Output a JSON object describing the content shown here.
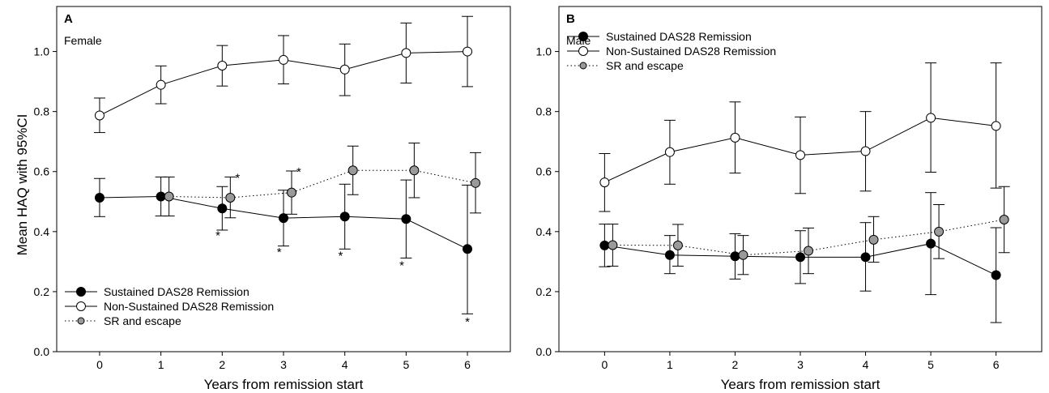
{
  "figure": {
    "ylabel": "Mean HAQ with 95%CI"
  },
  "chart_data": [
    {
      "type": "line",
      "panel_letter": "A",
      "subtitle": "Female",
      "xlabel": "Years from remission start",
      "ylabel": "Mean HAQ with 95%CI",
      "xlim": [
        -0.7,
        6.7
      ],
      "ylim": [
        0.0,
        1.15
      ],
      "x_ticks": [
        0,
        1,
        2,
        3,
        4,
        5,
        6
      ],
      "y_ticks": [
        "0.0",
        "0.2",
        "0.4",
        "0.6",
        "0.8",
        "1.0"
      ],
      "grid": false,
      "legend_position": "bottom-left",
      "series": [
        {
          "name": "Sustained DAS28 Remission",
          "style": "solid",
          "marker": "filled-black",
          "x": [
            0,
            1,
            2,
            3,
            4,
            5,
            6
          ],
          "y": [
            0.513,
            0.517,
            0.477,
            0.445,
            0.45,
            0.442,
            0.342
          ],
          "ci_low": [
            0.45,
            0.452,
            0.405,
            0.352,
            0.342,
            0.312,
            0.126
          ],
          "ci_high": [
            0.577,
            0.582,
            0.55,
            0.538,
            0.558,
            0.572,
            0.555
          ]
        },
        {
          "name": "Non-Sustained DAS28 Remission",
          "style": "solid",
          "marker": "open",
          "x": [
            0,
            1,
            2,
            3,
            4,
            5,
            6
          ],
          "y": [
            0.787,
            0.889,
            0.953,
            0.972,
            0.94,
            0.995,
            1.0
          ],
          "ci_low": [
            0.73,
            0.826,
            0.885,
            0.892,
            0.853,
            0.895,
            0.883
          ],
          "ci_high": [
            0.845,
            0.952,
            1.02,
            1.053,
            1.025,
            1.095,
            1.117
          ]
        },
        {
          "name": "SR and escape",
          "style": "dotted",
          "marker": "filled-gray",
          "x": [
            1,
            2,
            3,
            4,
            5,
            6
          ],
          "y": [
            0.517,
            0.513,
            0.53,
            0.604,
            0.604,
            0.562
          ],
          "ci_low": [
            0.452,
            0.446,
            0.458,
            0.523,
            0.513,
            0.462
          ],
          "ci_high": [
            0.582,
            0.582,
            0.602,
            0.685,
            0.695,
            0.663
          ]
        }
      ],
      "annotations": [
        {
          "text": "*",
          "x": 2.25,
          "y": 0.582
        },
        {
          "text": "*",
          "x": 3.25,
          "y": 0.602
        },
        {
          "text": "*",
          "x": 1.93,
          "y": 0.39
        },
        {
          "text": "*",
          "x": 2.93,
          "y": 0.335
        },
        {
          "text": "*",
          "x": 3.93,
          "y": 0.323
        },
        {
          "text": "*",
          "x": 4.93,
          "y": 0.29
        },
        {
          "text": "*",
          "x": 6.0,
          "y": 0.103
        }
      ]
    },
    {
      "type": "line",
      "panel_letter": "B",
      "subtitle": "Male",
      "xlabel": "Years from remission start",
      "ylabel": "",
      "xlim": [
        -0.7,
        6.7
      ],
      "ylim": [
        0.0,
        1.15
      ],
      "x_ticks": [
        0,
        1,
        2,
        3,
        4,
        5,
        6
      ],
      "y_ticks": [
        "0.0",
        "0.2",
        "0.4",
        "0.6",
        "0.8",
        "1.0"
      ],
      "grid": false,
      "legend_position": "top-left",
      "series": [
        {
          "name": "Sustained DAS28 Remission",
          "style": "solid",
          "marker": "filled-black",
          "x": [
            0,
            1,
            2,
            3,
            4,
            5,
            6
          ],
          "y": [
            0.354,
            0.322,
            0.318,
            0.315,
            0.315,
            0.36,
            0.255
          ],
          "ci_low": [
            0.283,
            0.26,
            0.242,
            0.227,
            0.202,
            0.19,
            0.097
          ],
          "ci_high": [
            0.425,
            0.387,
            0.393,
            0.403,
            0.43,
            0.53,
            0.413
          ]
        },
        {
          "name": "Non-Sustained DAS28 Remission",
          "style": "solid",
          "marker": "open",
          "x": [
            0,
            1,
            2,
            3,
            4,
            5,
            6
          ],
          "y": [
            0.564,
            0.665,
            0.713,
            0.655,
            0.668,
            0.779,
            0.752
          ],
          "ci_low": [
            0.467,
            0.558,
            0.595,
            0.527,
            0.535,
            0.598,
            0.545
          ],
          "ci_high": [
            0.66,
            0.771,
            0.832,
            0.782,
            0.8,
            0.962,
            0.962
          ]
        },
        {
          "name": "SR and escape",
          "style": "dotted",
          "marker": "filled-gray",
          "x": [
            0,
            1,
            2,
            3,
            4,
            5,
            6
          ],
          "y": [
            0.355,
            0.354,
            0.322,
            0.336,
            0.373,
            0.4,
            0.44
          ],
          "ci_low": [
            0.285,
            0.285,
            0.257,
            0.26,
            0.298,
            0.31,
            0.33
          ],
          "ci_high": [
            0.425,
            0.424,
            0.387,
            0.412,
            0.45,
            0.49,
            0.55
          ]
        }
      ],
      "annotations": []
    }
  ]
}
